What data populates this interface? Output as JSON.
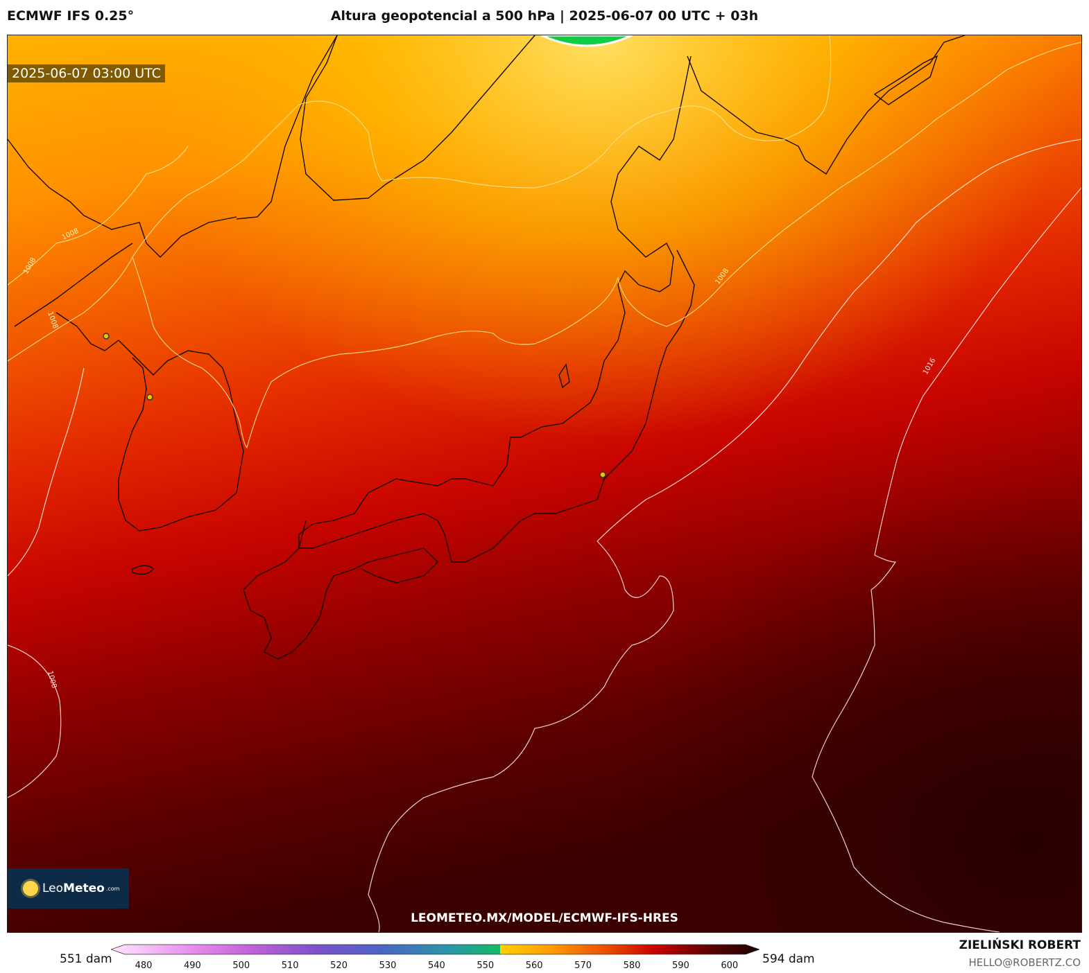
{
  "header": {
    "model": "ECMWF IFS 0.25°",
    "title": "Altura geopotencial a 500 hPa | 2025-06-07 00 UTC + 03h"
  },
  "map": {
    "timestamp": "2025-06-07 03:00 UTC",
    "isobar_labels": [
      "1008",
      "1008",
      "1008",
      "1008",
      "1016",
      "1008"
    ],
    "logo": {
      "name_light": "Leo",
      "name_bold": "Meteo",
      "suffix": ".com"
    },
    "url": "LEOMETEO.MX/MODEL/ECMWF-IFS-HRES"
  },
  "colorbar": {
    "min_label": "551 dam",
    "max_label": "594 dam",
    "ticks": [
      "480",
      "490",
      "500",
      "510",
      "520",
      "530",
      "540",
      "550",
      "560",
      "570",
      "580",
      "590",
      "600"
    ]
  },
  "credits": {
    "author": "ZIELIŃSKI ROBERT",
    "email": "HELLO@ROBERTZ.CO"
  }
}
